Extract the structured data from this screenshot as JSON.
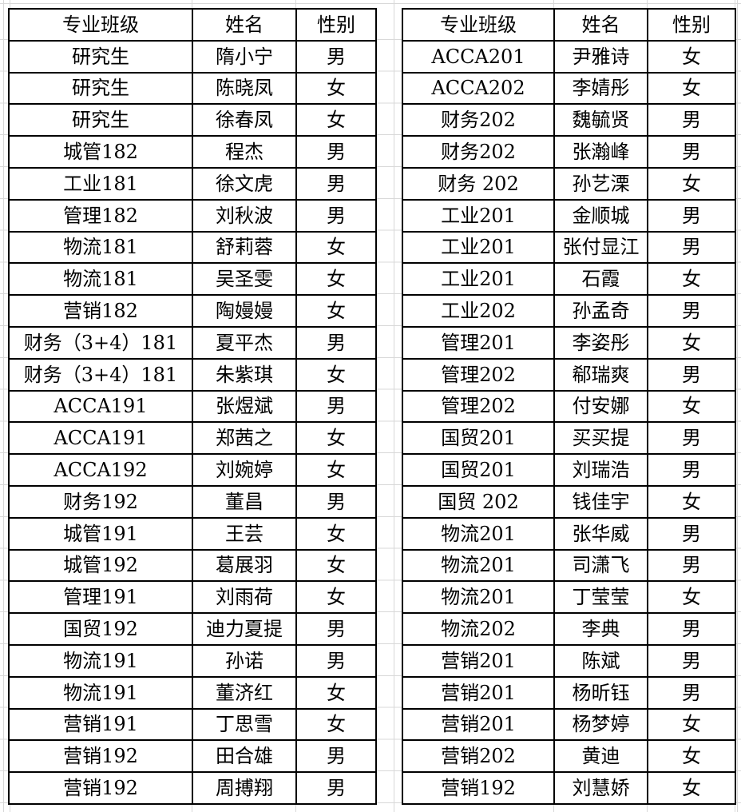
{
  "colors": {
    "background": "#ffffff",
    "table_border": "#000000",
    "grid_line": "#d8d8d8",
    "text": "#000000"
  },
  "tables": [
    {
      "name": "student-table-left",
      "headers": [
        "专业班级",
        "姓名",
        "性别"
      ],
      "rows": [
        [
          "研究生",
          "隋小宁",
          "男"
        ],
        [
          "研究生",
          "陈晓凤",
          "女"
        ],
        [
          "研究生",
          "徐春凤",
          "女"
        ],
        [
          "城管182",
          "程杰",
          "男"
        ],
        [
          "工业181",
          "徐文虎",
          "男"
        ],
        [
          "管理182",
          "刘秋波",
          "男"
        ],
        [
          "物流181",
          "舒莉蓉",
          "女"
        ],
        [
          "物流181",
          "吴圣雯",
          "女"
        ],
        [
          "营销182",
          "陶嫚嫚",
          "女"
        ],
        [
          "财务（3+4）181",
          "夏平杰",
          "男"
        ],
        [
          "财务（3+4）181",
          "朱紫琪",
          "女"
        ],
        [
          "ACCA191",
          "张煜斌",
          "男"
        ],
        [
          "ACCA191",
          "郑茜之",
          "女"
        ],
        [
          "ACCA192",
          "刘婉婷",
          "女"
        ],
        [
          "财务192",
          "董昌",
          "男"
        ],
        [
          "城管191",
          "王芸",
          "女"
        ],
        [
          "城管192",
          "葛展羽",
          "女"
        ],
        [
          "管理191",
          "刘雨荷",
          "女"
        ],
        [
          "国贸192",
          "迪力夏提",
          "男"
        ],
        [
          "物流191",
          "孙诺",
          "男"
        ],
        [
          "物流191",
          "董济红",
          "女"
        ],
        [
          "营销191",
          "丁思雪",
          "女"
        ],
        [
          "营销192",
          "田合雄",
          "男"
        ],
        [
          "营销192",
          "周搏翔",
          "男"
        ]
      ]
    },
    {
      "name": "student-table-right",
      "headers": [
        "专业班级",
        "姓名",
        "性别"
      ],
      "rows": [
        [
          "ACCA201",
          "尹雅诗",
          "女"
        ],
        [
          "ACCA202",
          "李婧彤",
          "女"
        ],
        [
          "财务202",
          "魏毓贤",
          "男"
        ],
        [
          "财务202",
          "张瀚峰",
          "男"
        ],
        [
          "财务 202",
          "孙艺溧",
          "女"
        ],
        [
          "工业201",
          "金顺城",
          "男"
        ],
        [
          "工业201",
          "张付显江",
          "男"
        ],
        [
          "工业201",
          "石霞",
          "女"
        ],
        [
          "工业202",
          "孙孟奇",
          "男"
        ],
        [
          "管理201",
          "李姿彤",
          "女"
        ],
        [
          "管理202",
          "郗瑞爽",
          "男"
        ],
        [
          "管理202",
          "付安娜",
          "女"
        ],
        [
          "国贸201",
          "买买提",
          "男"
        ],
        [
          "国贸201",
          "刘瑞浩",
          "男"
        ],
        [
          "国贸 202",
          "钱佳宇",
          "女"
        ],
        [
          "物流201",
          "张华威",
          "男"
        ],
        [
          "物流201",
          "司潇飞",
          "男"
        ],
        [
          "物流201",
          "丁莹莹",
          "女"
        ],
        [
          "物流202",
          "李典",
          "男"
        ],
        [
          "营销201",
          "陈斌",
          "男"
        ],
        [
          "营销201",
          "杨昕钰",
          "男"
        ],
        [
          "营销201",
          "杨梦婷",
          "女"
        ],
        [
          "营销202",
          "黄迪",
          "女"
        ],
        [
          "营销192",
          "刘慧娇",
          "女"
        ]
      ]
    }
  ]
}
